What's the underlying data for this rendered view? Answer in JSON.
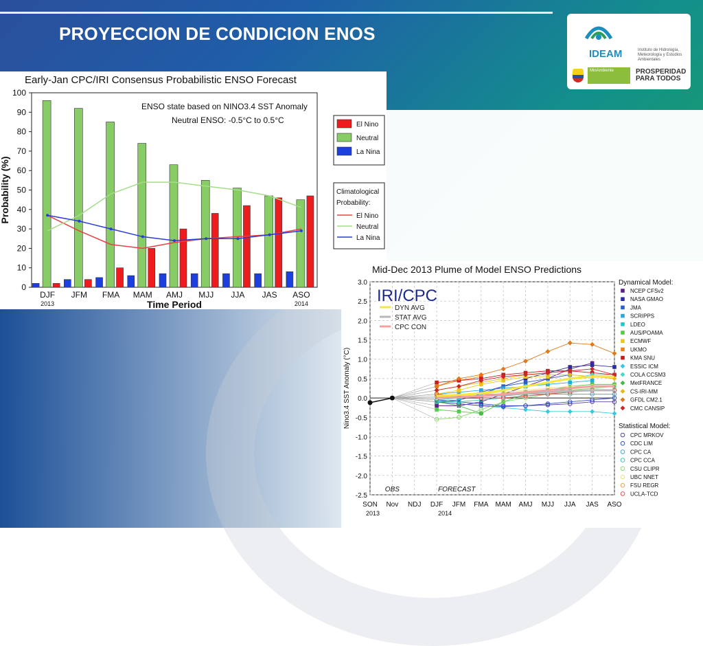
{
  "slide": {
    "title": "PROYECCION DE CONDICION ENOS",
    "logo": {
      "name": "IDEAM",
      "subtitle": "Instituto de Hidrología, Meteorología y Estudios Ambientales",
      "badge": "MinAmbiente",
      "slogan": "PROSPERIDAD PARA TODOS"
    }
  },
  "chart_data": [
    {
      "type": "bar",
      "title": "Early-Jan CPC/IRI Consensus Probabilistic ENSO Forecast",
      "xlabel": "Time Period",
      "ylabel": "Probability (%)",
      "ylim": [
        0,
        100
      ],
      "yticks": [
        0,
        10,
        20,
        30,
        40,
        50,
        60,
        70,
        80,
        90,
        100
      ],
      "categories": [
        "DJF",
        "JFM",
        "FMA",
        "MAM",
        "AMJ",
        "MJJ",
        "JJA",
        "JAS",
        "ASO"
      ],
      "year_labels": [
        {
          "index": 0,
          "text": "2013"
        },
        {
          "index": 8,
          "text": "2014"
        }
      ],
      "annotations": [
        "ENSO state based on NINO3.4 SST Anomaly",
        "Neutral ENSO: -0.5°C to 0.5°C"
      ],
      "series": [
        {
          "name": "El Nino",
          "color": "#ee1c1c",
          "values": [
            2,
            4,
            10,
            20,
            30,
            38,
            42,
            46,
            47
          ]
        },
        {
          "name": "Neutral",
          "color": "#88cc66",
          "values": [
            96,
            92,
            85,
            74,
            63,
            55,
            51,
            47,
            45
          ]
        },
        {
          "name": "La Nina",
          "color": "#1e3fe0",
          "values": [
            2,
            4,
            5,
            6,
            7,
            7,
            7,
            7,
            8
          ]
        }
      ],
      "climatology_title": "Climatological Probability:",
      "climatology": [
        {
          "name": "El Nino",
          "color": "#e84040",
          "values": [
            37,
            29,
            22,
            20,
            23,
            25,
            26,
            27,
            30
          ]
        },
        {
          "name": "Neutral",
          "color": "#a6dc8a",
          "values": [
            29,
            37,
            48,
            54,
            54,
            52,
            50,
            47,
            41
          ]
        },
        {
          "name": "La Nina",
          "color": "#2a3bd6",
          "values": [
            37,
            34,
            30,
            26,
            24,
            25,
            25,
            27,
            29
          ]
        }
      ],
      "legend_position": "right"
    },
    {
      "type": "line",
      "title": "Mid-Dec 2013 Plume of Model ENSO Predictions",
      "ylabel": "Nino3.4 SST Anomaly (°C)",
      "ylim": [
        -2.5,
        3.0
      ],
      "yticks": [
        "3.0",
        "2.5",
        "2.0",
        "1.5",
        "1.0",
        "0.5",
        "0.0",
        "-0.5",
        "-1.0",
        "-1.5",
        "-2.0",
        "-2.5"
      ],
      "x": [
        "SON",
        "Nov",
        "NDJ",
        "DJF",
        "JFM",
        "FMA",
        "MAM",
        "AMJ",
        "MJJ",
        "JJA",
        "JAS",
        "ASO"
      ],
      "x_sublabels": [
        {
          "index": 0,
          "text": "2013"
        },
        {
          "index": 3,
          "text": "2014"
        }
      ],
      "obs_label": "OBS",
      "forecast_label": "FORECAST",
      "logo_text": "IRI/CPC",
      "inner_legend": [
        {
          "name": "DYN AVG",
          "color": "#f5e642"
        },
        {
          "name": "STAT AVG",
          "color": "#b8b8b8"
        },
        {
          "name": "CPC CON",
          "color": "#f4a0a0"
        }
      ],
      "obs": [
        -0.12,
        0.0
      ],
      "averages": [
        {
          "name": "DYN AVG",
          "color": "#f5e642",
          "values": [
            0.05,
            0.08,
            0.12,
            0.2,
            0.3,
            0.4,
            0.5,
            0.55,
            0.55
          ]
        },
        {
          "name": "STAT AVG",
          "color": "#b8b8b8",
          "values": [
            0.0,
            0.02,
            0.05,
            0.08,
            0.12,
            0.15,
            0.18,
            0.2,
            0.2
          ]
        },
        {
          "name": "CPC CON",
          "color": "#f4a0a0",
          "values": [
            0.0,
            0.02,
            0.05,
            0.1,
            0.15,
            0.2,
            0.25,
            0.3,
            0.3
          ]
        }
      ],
      "dynamical_title": "Dynamical Model:",
      "dynamical": [
        {
          "name": "NCEP CFSv2",
          "color": "#5b1f8a",
          "marker": "square",
          "values": [
            -0.2,
            -0.2,
            -0.1,
            0.1,
            0.3,
            0.5,
            0.75,
            0.9,
            null
          ]
        },
        {
          "name": "NASA GMAO",
          "color": "#2c2ca0",
          "marker": "square",
          "values": [
            -0.1,
            -0.05,
            0.1,
            0.3,
            0.5,
            0.65,
            0.8,
            0.85,
            0.8
          ]
        },
        {
          "name": "JMA",
          "color": "#2862c8",
          "marker": "square",
          "values": [
            0.0,
            0.05,
            0.15,
            0.3,
            0.4,
            0.5,
            0.6,
            null,
            null
          ]
        },
        {
          "name": "SCRIPPS",
          "color": "#27a8d8",
          "marker": "square",
          "values": [
            0.1,
            0.15,
            0.2,
            0.25,
            0.3,
            0.35,
            0.4,
            0.45,
            null
          ]
        },
        {
          "name": "LDEO",
          "color": "#26c6c6",
          "marker": "square",
          "values": [
            -0.05,
            0.0,
            0.05,
            0.1,
            0.15,
            0.2,
            0.25,
            0.3,
            0.3
          ]
        },
        {
          "name": "AUS/POAMA",
          "color": "#56c84a",
          "marker": "square",
          "values": [
            -0.3,
            -0.35,
            -0.4,
            -0.1,
            0.1,
            0.2,
            0.3,
            0.35,
            0.35
          ]
        },
        {
          "name": "ECMWF",
          "color": "#e8c81c",
          "marker": "square",
          "values": [
            0.1,
            0.2,
            0.35,
            0.45,
            0.55,
            0.55,
            null,
            null,
            null
          ]
        },
        {
          "name": "UKMO",
          "color": "#e8841c",
          "marker": "square",
          "values": [
            0.3,
            0.45,
            0.55,
            null,
            null,
            null,
            null,
            null,
            null
          ]
        },
        {
          "name": "KMA SNU",
          "color": "#c81c1c",
          "marker": "square",
          "values": [
            0.4,
            0.45,
            0.5,
            0.6,
            0.65,
            0.7,
            0.7,
            0.65,
            0.6
          ]
        },
        {
          "name": "ESSIC ICM",
          "color": "#38c8e0",
          "marker": "diamond",
          "values": [
            -0.1,
            -0.15,
            -0.2,
            -0.25,
            -0.3,
            -0.35,
            -0.35,
            -0.35,
            -0.4
          ]
        },
        {
          "name": "COLA CCSM3",
          "color": "#48d8c8",
          "marker": "diamond",
          "values": [
            0.0,
            0.05,
            0.1,
            0.2,
            0.3,
            0.4,
            0.5,
            0.6,
            0.6
          ]
        },
        {
          "name": "MetFRANCE",
          "color": "#48b848",
          "marker": "diamond",
          "values": [
            -0.1,
            -0.2,
            -0.4,
            null,
            null,
            null,
            null,
            null,
            null
          ]
        },
        {
          "name": "CS-IRI-MM",
          "color": "#e8b818",
          "marker": "diamond",
          "values": [
            0.2,
            0.3,
            0.4,
            0.5,
            0.6,
            0.6,
            0.6,
            0.55,
            0.5
          ]
        },
        {
          "name": "GFDL CM2.1",
          "color": "#e0781c",
          "marker": "diamond",
          "values": [
            0.3,
            0.5,
            0.6,
            0.75,
            0.95,
            1.2,
            1.42,
            1.38,
            1.15
          ]
        },
        {
          "name": "CMC CANSIP",
          "color": "#c82828",
          "marker": "diamond",
          "values": [
            0.2,
            0.3,
            0.45,
            0.55,
            0.6,
            0.65,
            0.7,
            0.75,
            0.6
          ]
        }
      ],
      "statistical_title": "Statistical Model:",
      "statistical": [
        {
          "name": "CPC MRKOV",
          "color": "#5b3fa8",
          "marker": "circle",
          "values": [
            -0.1,
            -0.15,
            -0.2,
            -0.22,
            -0.2,
            -0.18,
            -0.15,
            -0.1,
            -0.1
          ]
        },
        {
          "name": "CDC LIM",
          "color": "#3050c8",
          "marker": "circle",
          "values": [
            -0.05,
            -0.1,
            -0.15,
            -0.2,
            -0.2,
            -0.15,
            -0.1,
            -0.05,
            0.0
          ]
        },
        {
          "name": "CPC CA",
          "color": "#38a8e0",
          "marker": "circle",
          "values": [
            0.0,
            0.0,
            0.05,
            0.05,
            0.1,
            0.1,
            0.1,
            0.1,
            0.1
          ]
        },
        {
          "name": "CPC CCA",
          "color": "#38c8b8",
          "marker": "circle",
          "values": [
            -0.1,
            -0.1,
            -0.05,
            0.0,
            0.05,
            0.1,
            0.15,
            0.2,
            0.2
          ]
        },
        {
          "name": "CSU CLIPR",
          "color": "#88d868",
          "marker": "circle",
          "values": [
            -0.55,
            -0.5,
            -0.3,
            -0.1,
            0.0,
            0.1,
            0.2,
            0.25,
            0.3
          ]
        },
        {
          "name": "UBC NNET",
          "color": "#e8e080",
          "marker": "circle",
          "values": [
            0.0,
            0.05,
            0.1,
            0.15,
            0.2,
            0.25,
            0.3,
            0.3,
            0.3
          ]
        },
        {
          "name": "FSU REGR",
          "color": "#f0a040",
          "marker": "circle",
          "values": [
            0.05,
            0.1,
            0.1,
            0.1,
            0.15,
            0.2,
            0.2,
            0.2,
            0.2
          ]
        },
        {
          "name": "UCLA-TCD",
          "color": "#e05050",
          "marker": "circle",
          "values": [
            0.1,
            0.05,
            0.0,
            0.0,
            0.05,
            0.1,
            0.15,
            0.2,
            0.2
          ]
        }
      ]
    }
  ]
}
